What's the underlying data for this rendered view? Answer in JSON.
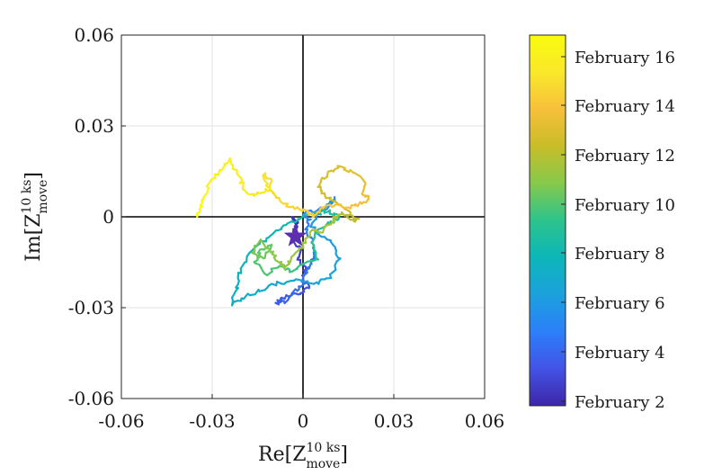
{
  "chart_data": {
    "type": "line",
    "title": "",
    "xlabel": {
      "base": "Re[Z",
      "sup": "10 ks",
      "sub": "move",
      "close": "]"
    },
    "ylabel": {
      "base": "Im[Z",
      "sup": "10 ks",
      "sub": "move",
      "close": "]"
    },
    "xlim": [
      -0.06,
      0.06
    ],
    "ylim": [
      -0.06,
      0.06
    ],
    "x_ticks": [
      {
        "value": -0.06,
        "label": "-0.06"
      },
      {
        "value": -0.03,
        "label": "-0.03"
      },
      {
        "value": 0,
        "label": "0"
      },
      {
        "value": 0.03,
        "label": "0.03"
      },
      {
        "value": 0.06,
        "label": "0.06"
      }
    ],
    "y_ticks": [
      {
        "value": 0.06,
        "label": "0.06"
      },
      {
        "value": 0.03,
        "label": "0.03"
      },
      {
        "value": 0,
        "label": "0"
      },
      {
        "value": -0.03,
        "label": "-0.03"
      },
      {
        "value": -0.06,
        "label": "-0.06"
      }
    ],
    "grid": true,
    "zero_lines": true,
    "colormap": "parula",
    "colormap_stops": [
      "#3e26a8",
      "#4353e6",
      "#2c7ffa",
      "#1ca1dc",
      "#0cb6b9",
      "#2cc38c",
      "#86c94c",
      "#c8bd29",
      "#f7c03b",
      "#f9e82a",
      "#f9fb0e"
    ],
    "colorbar": {
      "ticks": [
        "February 2",
        "February 4",
        "February 6",
        "February 8",
        "February 10",
        "February 12",
        "February 14",
        "February 16"
      ],
      "range": [
        "February 2",
        "February 17"
      ]
    },
    "start_marker": {
      "shape": "star",
      "x": -0.0025,
      "y": -0.0065,
      "color": "#5b2fb0"
    },
    "trajectory": [
      [
        -0.0025,
        -0.0065
      ],
      [
        -0.003,
        -0.004
      ],
      [
        -0.002,
        -0.002
      ],
      [
        -0.0035,
        0.0
      ],
      [
        -0.002,
        -0.003
      ],
      [
        -0.004,
        -0.008
      ],
      [
        -0.001,
        -0.01
      ],
      [
        -0.0015,
        -0.014
      ],
      [
        0.001,
        -0.017
      ],
      [
        0.0,
        -0.02
      ],
      [
        0.002,
        -0.023
      ],
      [
        -0.001,
        -0.025
      ],
      [
        -0.004,
        -0.026
      ],
      [
        -0.007,
        -0.027
      ],
      [
        -0.009,
        -0.029
      ],
      [
        -0.006,
        -0.028
      ],
      [
        -0.003,
        -0.025
      ],
      [
        0.0,
        -0.022
      ],
      [
        0.001,
        -0.018
      ],
      [
        0.003,
        -0.015
      ],
      [
        0.004,
        -0.012
      ],
      [
        0.003,
        -0.008
      ],
      [
        0.001,
        -0.004
      ],
      [
        0.002,
        -0.001
      ],
      [
        0.0,
        0.001
      ],
      [
        0.004,
        0.002
      ],
      [
        0.008,
        0.003
      ],
      [
        0.011,
        0.0065
      ],
      [
        0.008,
        0.004
      ],
      [
        0.005,
        0.001
      ],
      [
        0.003,
        -0.003
      ],
      [
        0.006,
        -0.006
      ],
      [
        0.01,
        -0.009
      ],
      [
        0.012,
        -0.014
      ],
      [
        0.009,
        -0.02
      ],
      [
        0.004,
        -0.022
      ],
      [
        -0.002,
        -0.021
      ],
      [
        -0.008,
        -0.022
      ],
      [
        -0.014,
        -0.024
      ],
      [
        -0.02,
        -0.027
      ],
      [
        -0.024,
        -0.029
      ],
      [
        -0.022,
        -0.024
      ],
      [
        -0.021,
        -0.018
      ],
      [
        -0.017,
        -0.011
      ],
      [
        -0.012,
        -0.007
      ],
      [
        -0.008,
        -0.004
      ],
      [
        -0.004,
        -0.002
      ],
      [
        0.0,
        0.0
      ],
      [
        0.004,
        0.001
      ],
      [
        0.008,
        0.002
      ],
      [
        0.012,
        0.0
      ],
      [
        0.009,
        -0.002
      ],
      [
        0.005,
        -0.004
      ],
      [
        0.003,
        -0.009
      ],
      [
        0.005,
        -0.014
      ],
      [
        0.0,
        -0.016
      ],
      [
        -0.004,
        -0.018
      ],
      [
        -0.008,
        -0.016
      ],
      [
        -0.012,
        -0.019
      ],
      [
        -0.016,
        -0.015
      ],
      [
        -0.014,
        -0.011
      ],
      [
        -0.01,
        -0.009
      ],
      [
        -0.013,
        -0.014
      ],
      [
        -0.017,
        -0.012
      ],
      [
        -0.014,
        -0.008
      ],
      [
        -0.01,
        -0.012
      ],
      [
        -0.008,
        -0.015
      ],
      [
        -0.006,
        -0.017
      ],
      [
        -0.003,
        -0.013
      ],
      [
        0.0,
        -0.009
      ],
      [
        0.004,
        -0.004
      ],
      [
        0.006,
        -0.005
      ],
      [
        0.01,
        -0.001
      ],
      [
        0.013,
        0.001
      ],
      [
        0.016,
        -0.001
      ],
      [
        0.018,
        -0.001
      ],
      [
        0.014,
        0.003
      ],
      [
        0.01,
        0.005
      ],
      [
        0.006,
        0.008
      ],
      [
        0.005,
        0.011
      ],
      [
        0.008,
        0.014
      ],
      [
        0.012,
        0.017
      ],
      [
        0.016,
        0.015
      ],
      [
        0.02,
        0.012
      ],
      [
        0.02,
        0.008
      ],
      [
        0.022,
        0.006
      ],
      [
        0.018,
        0.004
      ],
      [
        0.014,
        0.003
      ],
      [
        0.01,
        0.004
      ],
      [
        0.006,
        0.003
      ],
      [
        0.004,
        0.0
      ],
      [
        0.001,
        0.002
      ],
      [
        -0.003,
        0.003
      ],
      [
        -0.007,
        0.005
      ],
      [
        -0.01,
        0.008
      ],
      [
        -0.011,
        0.012
      ],
      [
        -0.013,
        0.014
      ],
      [
        -0.011,
        0.009
      ],
      [
        -0.014,
        0.008
      ],
      [
        -0.018,
        0.007
      ],
      [
        -0.02,
        0.011
      ],
      [
        -0.022,
        0.015
      ],
      [
        -0.024,
        0.019
      ],
      [
        -0.027,
        0.016
      ],
      [
        -0.029,
        0.013
      ],
      [
        -0.031,
        0.011
      ],
      [
        -0.033,
        0.006
      ],
      [
        -0.034,
        0.003
      ],
      [
        -0.035,
        0.0
      ]
    ]
  }
}
